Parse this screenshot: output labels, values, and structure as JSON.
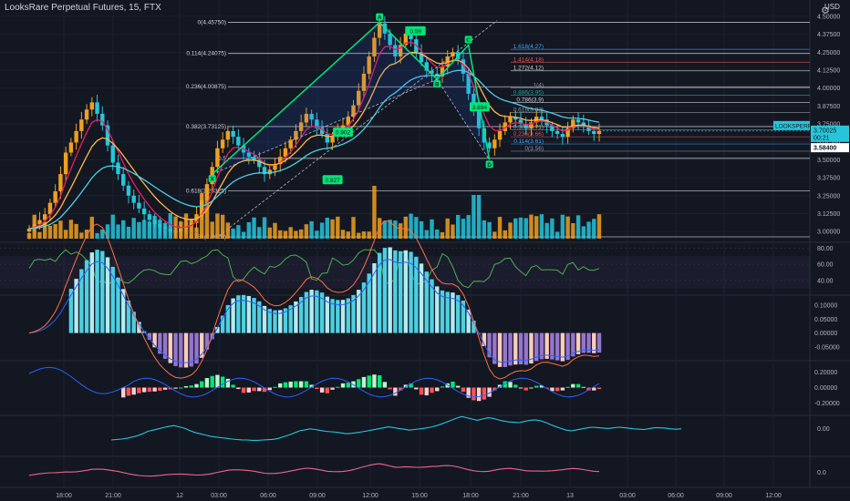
{
  "header": {
    "title": "LooksRare Perpetual Futures, 15, FTX",
    "currency": "USD"
  },
  "colors": {
    "background": "#131722",
    "up_candle": "#f0a020",
    "down_candle": "#26c6da",
    "ema_fast": "#e91e63",
    "ema_mid": "#ffb74d",
    "ema_slow": "#4dd0e1",
    "harmonic": "#00e676",
    "rsi": "#4caf50",
    "macd_teal": "#4dd0e1",
    "macd_purple": "#9575cd",
    "blue_line": "#2962ff",
    "pink_line": "#f06292",
    "cyan_line": "#26c6da"
  },
  "chart_data": [
    {
      "type": "line",
      "panel": "price",
      "y_ticks": [
        "4.50000",
        "4.37500",
        "4.25000",
        "4.12500",
        "4.00000",
        "3.87500",
        "3.75000",
        "3.62500",
        "3.50000",
        "3.37500",
        "3.25000",
        "3.12500",
        "3.00000"
      ],
      "ylim": [
        2.95,
        4.55
      ],
      "x_ticks": [
        "18:00",
        "21:00",
        "12",
        "03:00",
        "06:00",
        "09:00",
        "12:00",
        "15:00",
        "18:00",
        "21:00",
        "13",
        "03:00",
        "06:00",
        "09:00",
        "12:00"
      ],
      "close": [
        3.02,
        3.05,
        3.08,
        3.12,
        3.2,
        3.28,
        3.4,
        3.55,
        3.62,
        3.7,
        3.78,
        3.85,
        3.9,
        3.82,
        3.74,
        3.6,
        3.48,
        3.4,
        3.32,
        3.25,
        3.2,
        3.16,
        3.12,
        3.08,
        3.05,
        3.03,
        3.02,
        3.0,
        3.0,
        3.02,
        3.04,
        3.06,
        3.12,
        3.22,
        3.33,
        3.45,
        3.58,
        3.64,
        3.7,
        3.66,
        3.6,
        3.55,
        3.52,
        3.5,
        3.45,
        3.4,
        3.43,
        3.47,
        3.52,
        3.58,
        3.64,
        3.7,
        3.76,
        3.82,
        3.78,
        3.72,
        3.68,
        3.62,
        3.66,
        3.7,
        3.74,
        3.8,
        3.88,
        3.98,
        4.1,
        4.22,
        4.35,
        4.45,
        4.38,
        4.3,
        4.22,
        4.3,
        4.38,
        4.34,
        4.25,
        4.18,
        4.12,
        4.1,
        4.08,
        4.15,
        4.22,
        4.25,
        4.2,
        4.1,
        3.96,
        3.84,
        3.72,
        3.62,
        3.58,
        3.64,
        3.7,
        3.76,
        3.8,
        3.78,
        3.75,
        3.72,
        3.76,
        3.8,
        3.78,
        3.74,
        3.7,
        3.68,
        3.66,
        3.72,
        3.78,
        3.76,
        3.74,
        3.7,
        3.68,
        3.7
      ],
      "levels": [
        {
          "label": "0(4.45750)",
          "value": 4.4575
        },
        {
          "label": "0.114(4.24075)",
          "value": 4.24075
        },
        {
          "label": "0.236(4.00875)",
          "value": 4.00875
        },
        {
          "label": "0.382(3.73125)",
          "value": 3.73125
        },
        {
          "label": "0.5",
          "value": 3.51
        },
        {
          "label": "0.618(3.28325)",
          "value": 3.28325
        },
        {
          "label": "0.786(2.9625)",
          "value": 2.9625
        }
      ],
      "ext_levels": [
        {
          "label": "1.618(4.27)",
          "value": 4.27,
          "color": "#42a5f5"
        },
        {
          "label": "1.414(4.18)",
          "value": 4.18,
          "color": "#ef5350"
        },
        {
          "label": "1.272(4.12)",
          "value": 4.12,
          "color": "#d1d4dc"
        },
        {
          "label": "1(4)",
          "value": 4.0,
          "color": "#9598a1"
        },
        {
          "label": "0.886(3.95)",
          "value": 3.95,
          "color": "#26a69a"
        },
        {
          "label": "0.786(3.9)",
          "value": 3.9,
          "color": "#d1d4dc"
        },
        {
          "label": "0.618(3.83)",
          "value": 3.83,
          "color": "#9598a1"
        },
        {
          "label": "0.382(3.71)",
          "value": 3.71,
          "color": "#9598a1"
        },
        {
          "label": "0.236(3.66)",
          "value": 3.66,
          "color": "#ef5350"
        },
        {
          "label": "0.114(3.61)",
          "value": 3.61,
          "color": "#42a5f5"
        },
        {
          "label": "0(3.56)",
          "value": 3.56,
          "color": "#9598a1"
        }
      ],
      "pattern_points": [
        {
          "label": "X",
          "value": 3.4
        },
        {
          "label": "A",
          "value": 4.4575
        },
        {
          "label": "B",
          "value": 4.06
        },
        {
          "label": "C",
          "value": 4.3
        },
        {
          "label": "D",
          "value": 3.5
        }
      ],
      "pattern_ratios": [
        "0.59",
        "0.902",
        "3.894",
        "0.827"
      ],
      "price_labels": {
        "symbol": "LOOKSPERP",
        "last": "3.70025",
        "countdown": "00:21",
        "low": "3.58400"
      }
    },
    {
      "type": "line",
      "panel": "rsi",
      "y_ticks": [
        "80.00",
        "60.00",
        "40.00"
      ],
      "ylim": [
        25,
        85
      ]
    },
    {
      "type": "bar",
      "panel": "macd",
      "y_ticks": [
        "0.10000",
        "0.05000",
        "0.00000",
        "-0.05000"
      ],
      "ylim": [
        -0.09,
        0.13
      ]
    },
    {
      "type": "bar",
      "panel": "oscillator",
      "y_ticks": [
        "0.20000",
        "0.00000",
        "-0.20000"
      ],
      "ylim": [
        -0.32,
        0.32
      ]
    },
    {
      "type": "line",
      "panel": "line_a",
      "y_ticks": [
        "0.00"
      ]
    },
    {
      "type": "line",
      "panel": "line_b",
      "y_ticks": [
        "0.0"
      ]
    }
  ]
}
